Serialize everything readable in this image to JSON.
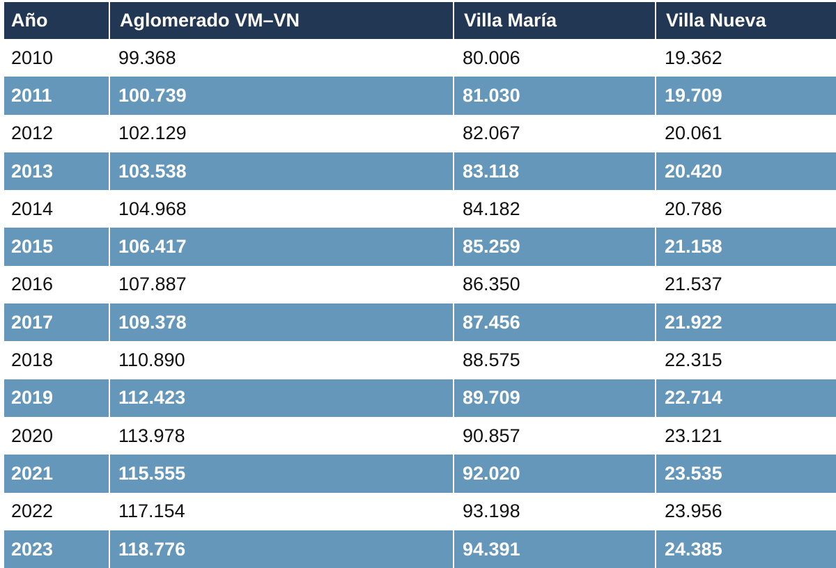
{
  "chart_data": {
    "type": "table",
    "columns": [
      "Año",
      "Aglomerado VM–VN",
      "Villa María",
      "Villa Nueva"
    ],
    "rows": [
      [
        "2010",
        "99.368",
        "80.006",
        "19.362"
      ],
      [
        "2011",
        "100.739",
        "81.030",
        "19.709"
      ],
      [
        "2012",
        "102.129",
        "82.067",
        "20.061"
      ],
      [
        "2013",
        "103.538",
        "83.118",
        "20.420"
      ],
      [
        "2014",
        "104.968",
        "84.182",
        "20.786"
      ],
      [
        "2015",
        "106.417",
        "85.259",
        "21.158"
      ],
      [
        "2016",
        "107.887",
        "86.350",
        "21.537"
      ],
      [
        "2017",
        "109.378",
        "87.456",
        "21.922"
      ],
      [
        "2018",
        "110.890",
        "88.575",
        "22.315"
      ],
      [
        "2019",
        "112.423",
        "89.709",
        "22.714"
      ],
      [
        "2020",
        "113.978",
        "90.857",
        "23.121"
      ],
      [
        "2021",
        "115.555",
        "92.020",
        "23.535"
      ],
      [
        "2022",
        "117.154",
        "93.198",
        "23.956"
      ],
      [
        "2023",
        "118.776",
        "94.391",
        "24.385"
      ]
    ],
    "colors": {
      "header_bg": "#213754",
      "band_bg": "#6597bb",
      "plain_bg": "#ffffff"
    }
  }
}
